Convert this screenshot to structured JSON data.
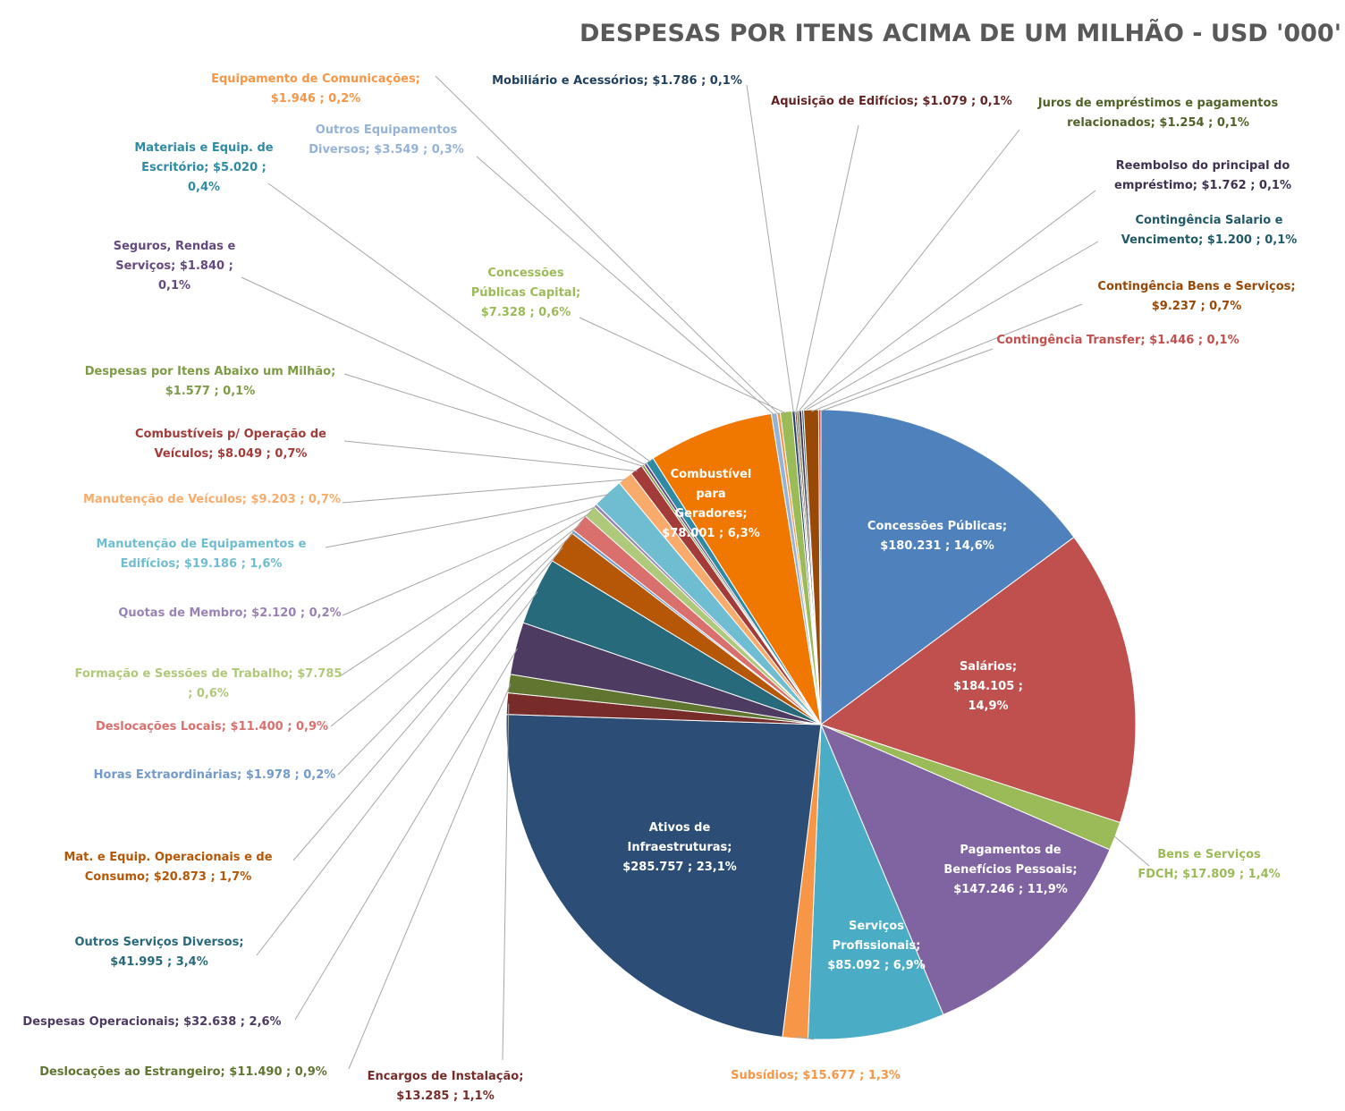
{
  "chart_data": {
    "type": "pie",
    "title": "DESPESAS POR ITENS ACIMA DE UM MILHÃO - USD '000'",
    "categories": [
      "Concessões Públicas;",
      "Salários;",
      "Bens e Serviços FDCH;",
      "Pagamentos de Benefícios Pessoais;",
      "Serviços Profissionais;",
      "Subsídios;",
      "Ativos de Infraestruturas;",
      "Encargos de Instalação;",
      "Deslocações ao Estrangeiro;",
      "Despesas Operacionais;",
      "Outros Serviços Diversos;",
      "Mat. e Equip. Operacionais e de Consumo;",
      "Horas Extraordinárias;",
      "Deslocações Locais;",
      "Formação e Sessões de Trabalho;",
      "Quotas de Membro;",
      "Manutenção de Equipamentos e Edifícios;",
      "Manutenção de Veículos;",
      "Combustíveis p/ Operação de Veículos;",
      "Despesas por Itens Abaixo um Milhão;",
      "Seguros, Rendas e Serviços;",
      "Materiais e Equip. de Escritório;",
      "Combustível para Geradores;",
      "Outros Equipamentos Diversos;",
      "Equipamento de Comunicações;",
      "Concessões Públicas Capital;",
      "Mobiliário e Acessórios;",
      "Aquisição de Edifícios;",
      "Juros de empréstimos e pagamentos relacionados;",
      "Reembolso do principal do empréstimo;",
      "Contingência Salario e Vencimento;",
      "Contingência Bens e Serviços;",
      "Contingência Transfer;"
    ],
    "values": [
      180231,
      184105,
      17809,
      147246,
      85092,
      15677,
      285757,
      13285,
      11490,
      32638,
      41995,
      20873,
      1978,
      11400,
      7785,
      2120,
      19186,
      9203,
      8049,
      1577,
      1840,
      5020,
      78001,
      3549,
      1946,
      7328,
      1786,
      1079,
      1254,
      1762,
      1200,
      9237,
      1446
    ],
    "value_labels": [
      "$180.231 ; 14,6%",
      "$184.105 ; 14,9%",
      "$17.809 ; 1,4%",
      "$147.246 ; 11,9%",
      "$85.092 ; 6,9%",
      "$15.677 ; 1,3%",
      "$285.757 ; 23,1%",
      "$13.285 ; 1,1%",
      "$11.490 ; 0,9%",
      "$32.638 ; 2,6%",
      "$41.995 ; 3,4%",
      "$20.873 ; 1,7%",
      "$1.978 ; 0,2%",
      "$11.400 ; 0,9%",
      "$7.785 ; 0,6%",
      "$2.120 ; 0,2%",
      "$19.186 ; 1,6%",
      "$9.203 ; 0,7%",
      "$8.049 ; 0,7%",
      "$1.577 ; 0,1%",
      "$1.840 ; 0,1%",
      "$5.020 ; 0,4%",
      "$78.001 ; 6,3%",
      "$3.549 ; 0,3%",
      "$1.946 ; 0,2%",
      "$7.328 ; 0,6%",
      "$1.786 ; 0,1%",
      "$1.079 ; 0,1%",
      "$1.254 ; 0,1%",
      "$1.762 ; 0,1%",
      "$1.200 ; 0,1%",
      "$9.237 ; 0,7%",
      "$1.446 ; 0,1%"
    ],
    "colors": [
      "#4f81bd",
      "#c0504d",
      "#9bbb59",
      "#8064a2",
      "#4bacc6",
      "#f79646",
      "#2c4d75",
      "#772c2a",
      "#5f7530",
      "#4d3b62",
      "#276a7c",
      "#b65708",
      "#729aca",
      "#d9706e",
      "#afc97a",
      "#9983b5",
      "#6fbdd1",
      "#f9ab6b",
      "#a33c38",
      "#7d9c45",
      "#64497f",
      "#2f8ba3",
      "#f07800",
      "#95b3d7",
      "#f79646",
      "#9bbb59",
      "#1f3f5f",
      "#632523",
      "#4f6228",
      "#3f3151",
      "#215967",
      "#984807",
      "#c0504d"
    ]
  }
}
